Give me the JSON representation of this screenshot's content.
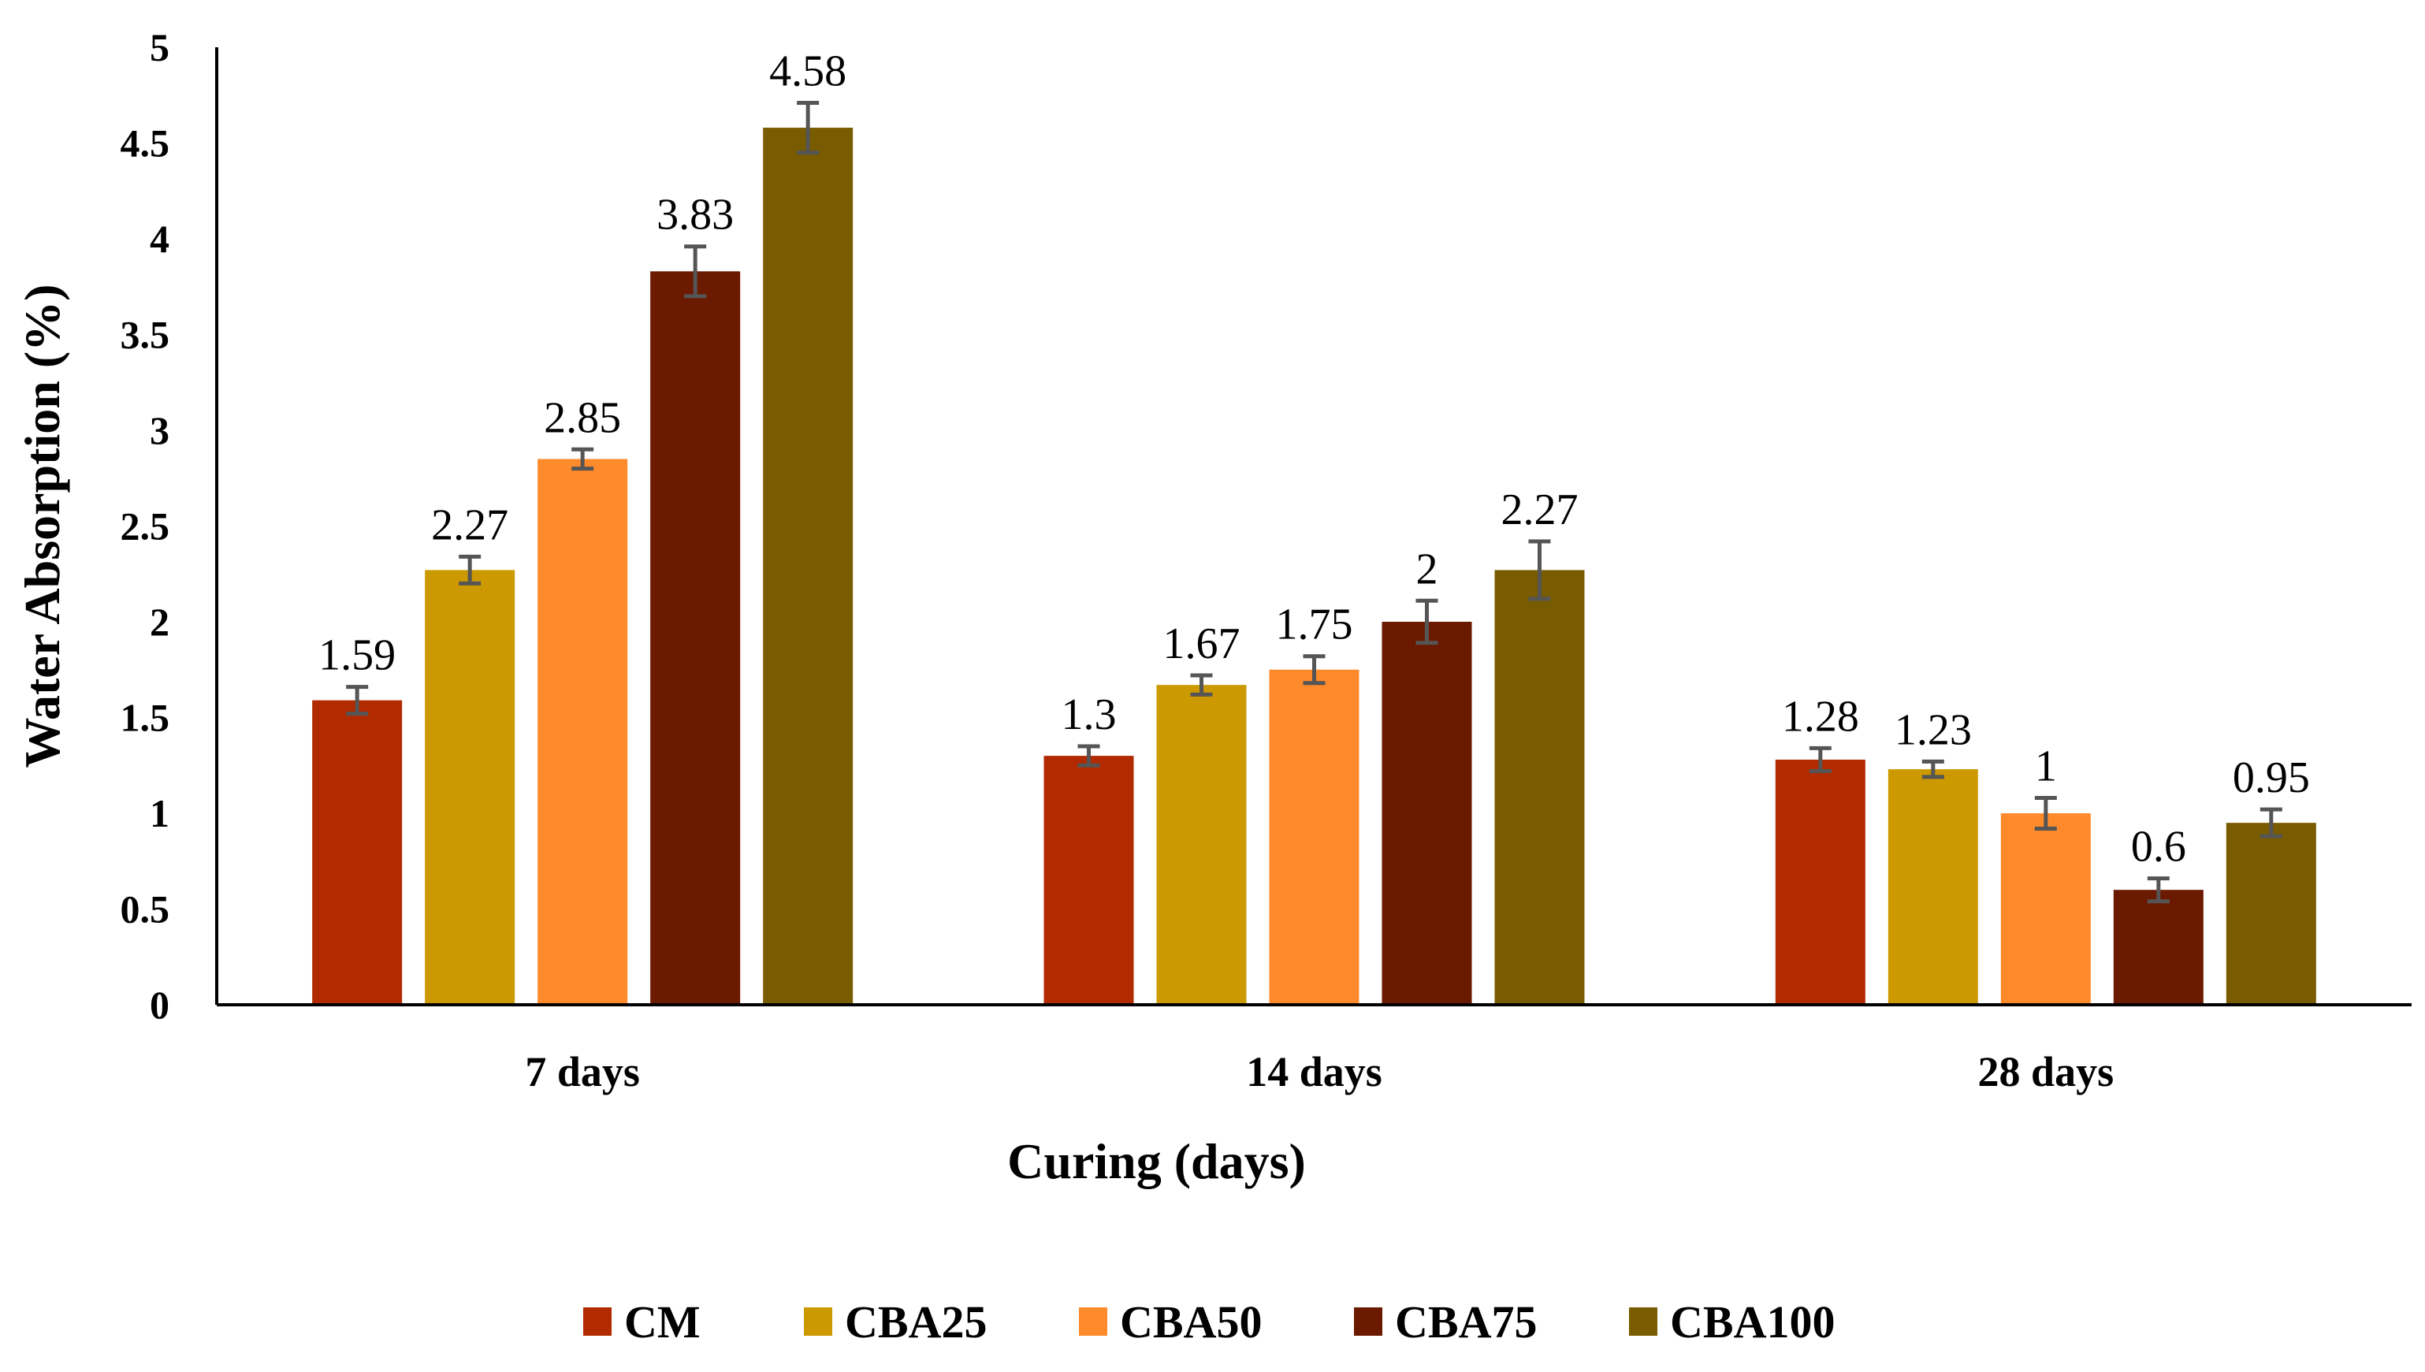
{
  "chart_data": {
    "type": "bar",
    "title": "",
    "xlabel": "Curing (days)",
    "ylabel": "Water Absorption (%)",
    "ylim": [
      0,
      5
    ],
    "yticks": [
      "0",
      "0.5",
      "1",
      "1.5",
      "2",
      "2.5",
      "3",
      "3.5",
      "4",
      "4.5",
      "5"
    ],
    "categories": [
      "7 days",
      "14 days",
      "28 days"
    ],
    "series": [
      {
        "name": "CM",
        "color": "#B22A00",
        "values": [
          1.59,
          1.3,
          1.28
        ],
        "labels": [
          "1.59",
          "1.3",
          "1.28"
        ],
        "errors": [
          0.07,
          0.05,
          0.06
        ]
      },
      {
        "name": "CBA25",
        "color": "#CC9900",
        "values": [
          2.27,
          1.67,
          1.23
        ],
        "labels": [
          "2.27",
          "1.67",
          "1.23"
        ],
        "errors": [
          0.07,
          0.05,
          0.04
        ]
      },
      {
        "name": "CBA50",
        "color": "#FF8A2B",
        "values": [
          2.85,
          1.75,
          1.0
        ],
        "labels": [
          "2.85",
          "1.75",
          "1"
        ],
        "errors": [
          0.05,
          0.07,
          0.08
        ]
      },
      {
        "name": "CBA75",
        "color": "#6B1A00",
        "values": [
          3.83,
          2.0,
          0.6
        ],
        "labels": [
          "3.83",
          "2",
          "0.6"
        ],
        "errors": [
          0.13,
          0.11,
          0.06
        ]
      },
      {
        "name": "CBA100",
        "color": "#7A5C00",
        "values": [
          4.58,
          2.27,
          0.95
        ],
        "labels": [
          "4.58",
          "2.27",
          "0.95"
        ],
        "errors": [
          0.13,
          0.15,
          0.07
        ]
      }
    ],
    "legend_position": "bottom",
    "grid": false
  }
}
